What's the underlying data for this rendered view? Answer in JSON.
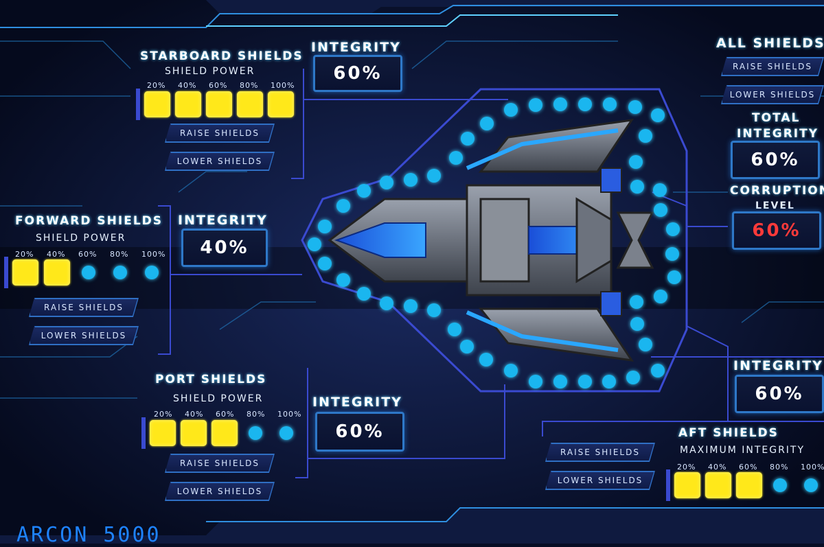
{
  "starboard": {
    "title": "STARBOARD SHIELDS",
    "power_label": "SHIELD POWER",
    "levels": [
      "20%",
      "40%",
      "60%",
      "80%",
      "100%"
    ],
    "active_segments": 5,
    "raise": "RAISE SHIELDS",
    "lower": "LOWER SHIELDS",
    "integrity_label": "INTEGRITY",
    "integrity": "60%"
  },
  "forward": {
    "title": "FORWARD SHIELDS",
    "power_label": "SHIELD POWER",
    "levels": [
      "20%",
      "40%",
      "60%",
      "80%",
      "100%"
    ],
    "active_segments": 2,
    "raise": "RAISE SHIELDS",
    "lower": "LOWER SHIELDS",
    "integrity_label": "INTEGRITY",
    "integrity": "40%"
  },
  "port": {
    "title": "PORT SHIELDS",
    "power_label": "SHIELD POWER",
    "levels": [
      "20%",
      "40%",
      "60%",
      "80%",
      "100%"
    ],
    "active_segments": 3,
    "raise": "RAISE SHIELDS",
    "lower": "LOWER SHIELDS",
    "integrity_label": "INTEGRITY",
    "integrity": "60%"
  },
  "aft": {
    "title": "AFT SHIELDS",
    "power_label": "MAXIMUM INTEGRITY",
    "levels": [
      "20%",
      "40%",
      "60%",
      "80%",
      "100%"
    ],
    "active_segments": 3,
    "raise": "RAISE SHIELDS",
    "lower": "LOWER SHIELDS",
    "integrity_label": "INTEGRITY",
    "integrity": "60%"
  },
  "all": {
    "title": "ALL SHIELDS",
    "raise": "RAISE SHIELDS",
    "lower": "LOWER SHIELDS",
    "total_label_1": "TOTAL",
    "total_label_2": "INTEGRITY",
    "total": "60%",
    "corruption_label_1": "CORRUPTION",
    "corruption_label_2": "LEVEL",
    "corruption": "60%"
  },
  "logo": "ARCON 5000",
  "colors": {
    "accent": "#2e78c8",
    "active": "#ffe81a",
    "inactive": "#1ab6ef",
    "danger": "#ff3a3a"
  }
}
